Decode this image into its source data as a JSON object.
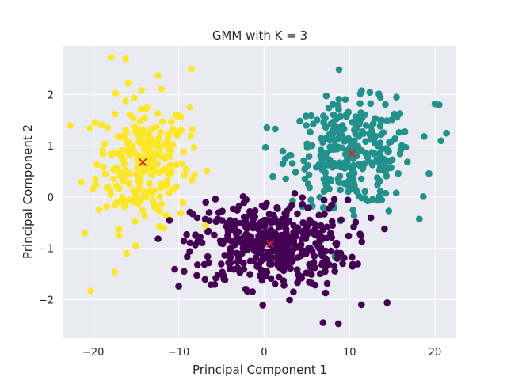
{
  "chart_data": {
    "type": "scatter",
    "title": "GMM with K = 3",
    "xlabel": "Principal Component 1",
    "ylabel": "Principal Component 2",
    "xlim": [
      -23.5,
      22.5
    ],
    "ylim": [
      -2.75,
      2.95
    ],
    "xticks": [
      -20,
      -10,
      0,
      10,
      20
    ],
    "yticks": [
      -2,
      -1,
      0,
      1,
      2
    ],
    "xtick_labels": [
      "−20",
      "−10",
      "0",
      "10",
      "20"
    ],
    "ytick_labels": [
      "−2",
      "−1",
      "0",
      "1",
      "2"
    ],
    "grid": true,
    "background": "#eaeaf2",
    "clusters": [
      {
        "color": "#fde725",
        "center": [
          -14.2,
          0.68
        ],
        "spread": [
          2.7,
          0.62
        ],
        "count": 240,
        "extreme_points": [
          [
            -17.9,
            2.73
          ],
          [
            -16.2,
            2.7
          ],
          [
            -20.3,
            -1.83
          ],
          [
            -21.0,
            -0.7
          ],
          [
            -10.7,
            1.33
          ],
          [
            -8.4,
            1.33
          ],
          [
            -8.2,
            0.97
          ],
          [
            -11.5,
            -0.35
          ],
          [
            -12.4,
            2.37
          ],
          [
            -8.5,
            2.5
          ],
          [
            -21.4,
            0.29
          ],
          [
            -17.5,
            -1.46
          ],
          [
            -16.1,
            -1.1
          ]
        ]
      },
      {
        "color": "#21918c",
        "center": [
          10.3,
          0.85
        ],
        "spread": [
          3.5,
          0.5
        ],
        "count": 300,
        "extreme_points": [
          [
            20.7,
            1.1
          ],
          [
            19.3,
            0.46
          ],
          [
            20.0,
            1.82
          ],
          [
            20.5,
            1.8
          ],
          [
            2.2,
            0.65
          ],
          [
            1.3,
            1.33
          ],
          [
            15.5,
            1.95
          ],
          [
            14.6,
            -0.27
          ],
          [
            8.1,
            -0.17
          ],
          [
            6.8,
            0.54
          ]
        ]
      },
      {
        "color": "#440154",
        "center": [
          0.7,
          -0.91
        ],
        "spread": [
          4.5,
          0.42
        ],
        "count": 440,
        "extreme_points": [
          [
            -10.0,
            -1.74
          ],
          [
            -7.8,
            -1.32
          ],
          [
            -6.6,
            -1.16
          ],
          [
            14.1,
            -0.62
          ],
          [
            14.4,
            -2.06
          ],
          [
            11.4,
            -2.1
          ],
          [
            8.7,
            -2.47
          ],
          [
            6.9,
            -2.45
          ],
          [
            7.2,
            -1.87
          ],
          [
            -2.1,
            -0.05
          ],
          [
            -5.7,
            -0.04
          ],
          [
            5.3,
            -1.66
          ]
        ]
      }
    ],
    "centroids": [
      {
        "x": -14.2,
        "y": 0.68
      },
      {
        "x": 10.3,
        "y": 0.85
      },
      {
        "x": 0.7,
        "y": -0.91
      }
    ],
    "centroid_marker": "x",
    "centroid_color": "#d62728"
  }
}
